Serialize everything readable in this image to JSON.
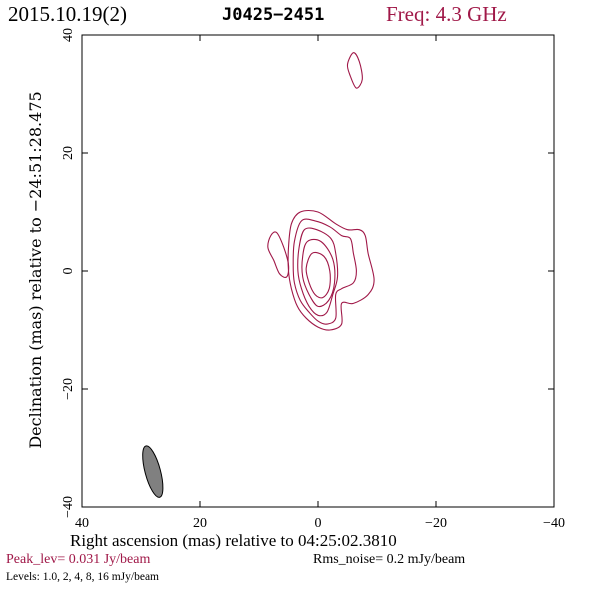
{
  "header": {
    "date": "2015.10.19(2)",
    "source": "J0425−2451",
    "frequency": "Freq: 4.3 GHz"
  },
  "footer": {
    "peak_level": "Peak_lev=  0.031 Jy/beam",
    "rms_noise": "Rms_noise=   0.2 mJy/beam",
    "levels": "Levels: 1.0,    2,    4,    8,   16 mJy/beam"
  },
  "colors": {
    "contour": "#a01848",
    "beam": "#808080",
    "axes": "#000000"
  },
  "chart_data": {
    "type": "contour",
    "xlabel": "Right ascension (mas) relative to 04:25:02.3810",
    "ylabel": "Declination (mas) relative to −24:51:28.475",
    "xlim": [
      40,
      -40
    ],
    "ylim": [
      -40,
      40
    ],
    "x_ticks": [
      40,
      20,
      0,
      -20,
      -40
    ],
    "y_ticks": [
      -40,
      -20,
      0,
      20,
      40
    ],
    "x_tick_labels": [
      "40",
      "20",
      "0",
      "−20",
      "−40"
    ],
    "y_tick_labels": [
      "−40",
      "−20",
      "0",
      "20",
      "40"
    ],
    "contour_levels_mJy": [
      1.0,
      2,
      4,
      8,
      16
    ],
    "contours": [
      {
        "level": 1.0,
        "points": [
          [
            3,
            10
          ],
          [
            0,
            10
          ],
          [
            -3,
            8
          ],
          [
            -5,
            7
          ],
          [
            -7,
            7
          ],
          [
            -8,
            6
          ],
          [
            -8.5,
            3
          ],
          [
            -9.5,
            -1.5
          ],
          [
            -8.5,
            -4
          ],
          [
            -6,
            -5.5
          ],
          [
            -4,
            -5.5
          ],
          [
            -4,
            -9
          ],
          [
            -2,
            -10
          ],
          [
            0,
            -9.5
          ],
          [
            2,
            -8
          ],
          [
            3.5,
            -6
          ],
          [
            4.5,
            -3
          ],
          [
            5,
            0
          ],
          [
            5,
            4
          ],
          [
            4.5,
            8
          ]
        ]
      },
      {
        "level": 2,
        "points": [
          [
            2.8,
            8.5
          ],
          [
            0.5,
            8.5
          ],
          [
            -2,
            7.5
          ],
          [
            -4,
            6
          ],
          [
            -5.5,
            5.5
          ],
          [
            -6,
            3
          ],
          [
            -6.5,
            0
          ],
          [
            -6,
            -2
          ],
          [
            -4,
            -3
          ],
          [
            -3,
            -4
          ],
          [
            -3,
            -8
          ],
          [
            -1.5,
            -9
          ],
          [
            0,
            -8.5
          ],
          [
            1.5,
            -7
          ],
          [
            3,
            -5
          ],
          [
            4,
            -2
          ],
          [
            4.2,
            1
          ],
          [
            4,
            5
          ]
        ]
      },
      {
        "level": 4,
        "points": [
          [
            2.3,
            7
          ],
          [
            0.2,
            7
          ],
          [
            -2.2,
            5.5
          ],
          [
            -3,
            3
          ],
          [
            -3.3,
            -1
          ],
          [
            -2.5,
            -4
          ],
          [
            -1.5,
            -7
          ],
          [
            0,
            -7.5
          ],
          [
            1.5,
            -6
          ],
          [
            2.8,
            -3
          ],
          [
            3.4,
            0
          ],
          [
            3.2,
            4
          ]
        ]
      },
      {
        "level": 8,
        "points": [
          [
            1.8,
            5
          ],
          [
            -0.5,
            5
          ],
          [
            -2.5,
            2
          ],
          [
            -2.8,
            -2
          ],
          [
            -1.8,
            -5
          ],
          [
            0,
            -6
          ],
          [
            1.5,
            -4
          ],
          [
            2.6,
            -1
          ],
          [
            2.6,
            2.5
          ]
        ]
      },
      {
        "level": 16,
        "points": [
          [
            1,
            3
          ],
          [
            -1,
            2.5
          ],
          [
            -2,
            0
          ],
          [
            -1.9,
            -3
          ],
          [
            -0.8,
            -4.5
          ],
          [
            0.5,
            -4
          ],
          [
            1.5,
            -2
          ],
          [
            2,
            0.5
          ]
        ]
      },
      {
        "level": 1.0,
        "points": [
          [
            8,
            6
          ],
          [
            7,
            6.5
          ],
          [
            5.8,
            4
          ],
          [
            5,
            1
          ],
          [
            5.3,
            -1
          ],
          [
            6.5,
            -0.5
          ],
          [
            7.5,
            1.8
          ],
          [
            8.5,
            4
          ]
        ]
      },
      {
        "level": 1.0,
        "points": [
          [
            -6,
            37
          ],
          [
            -7,
            35.5
          ],
          [
            -7.5,
            32.5
          ],
          [
            -6.5,
            31
          ],
          [
            -5.5,
            33
          ],
          [
            -5,
            35
          ]
        ]
      }
    ],
    "beam": {
      "center": [
        28,
        -34
      ],
      "major_mas": 9,
      "minor_mas": 2.6,
      "pa_deg": -15
    }
  }
}
